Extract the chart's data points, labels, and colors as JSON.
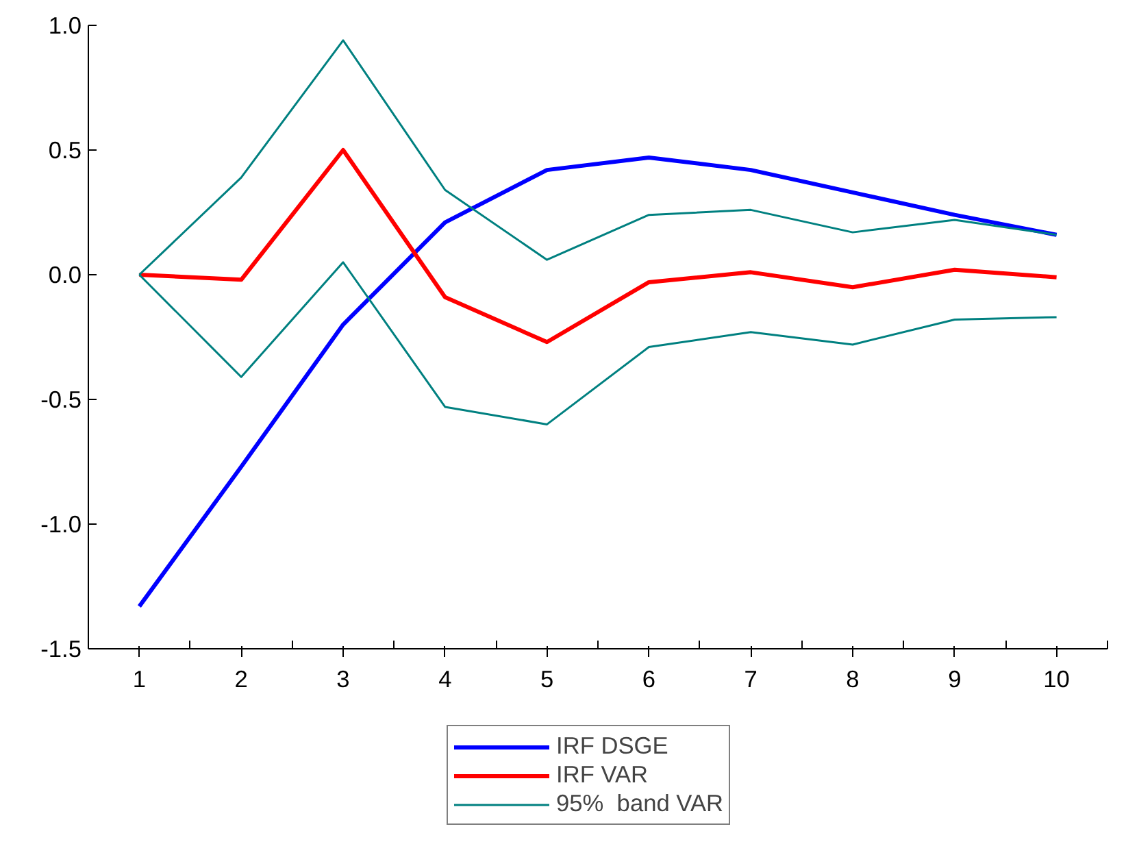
{
  "chart_data": {
    "type": "line",
    "categories": [
      "1",
      "2",
      "3",
      "4",
      "5",
      "6",
      "7",
      "8",
      "9",
      "10"
    ],
    "ylim": [
      -1.5,
      1.0
    ],
    "yticks": [
      {
        "value": -1.5,
        "label": "-1.5"
      },
      {
        "value": -1.0,
        "label": "-1.0"
      },
      {
        "value": -0.5,
        "label": "-0.5"
      },
      {
        "value": 0.0,
        "label": "0.0"
      },
      {
        "value": 0.5,
        "label": "0.5"
      },
      {
        "value": 1.0,
        "label": "1.0"
      }
    ],
    "grid": false,
    "legend": "bottom",
    "marker": "none",
    "line_style": "solid",
    "series": [
      {
        "name": "IRF DSGE",
        "color": "#0000ff",
        "values": [
          -1.33,
          -0.77,
          -0.2,
          0.21,
          0.42,
          0.47,
          0.42,
          0.33,
          0.24,
          0.16
        ]
      },
      {
        "name": "IRF VAR",
        "color": "#ff0000",
        "values": [
          0.0,
          -0.02,
          0.5,
          -0.09,
          -0.27,
          -0.03,
          0.01,
          -0.05,
          0.02,
          -0.01
        ]
      },
      {
        "name": "95%  band VAR",
        "color": "#008080",
        "values": [
          0.0,
          0.39,
          0.94,
          0.34,
          0.06,
          0.24,
          0.26,
          0.17,
          0.22,
          0.16
        ]
      },
      {
        "color": "#008080",
        "values": [
          0.0,
          -0.41,
          0.05,
          -0.53,
          -0.6,
          -0.29,
          -0.23,
          -0.28,
          -0.18,
          -0.17
        ]
      }
    ]
  }
}
